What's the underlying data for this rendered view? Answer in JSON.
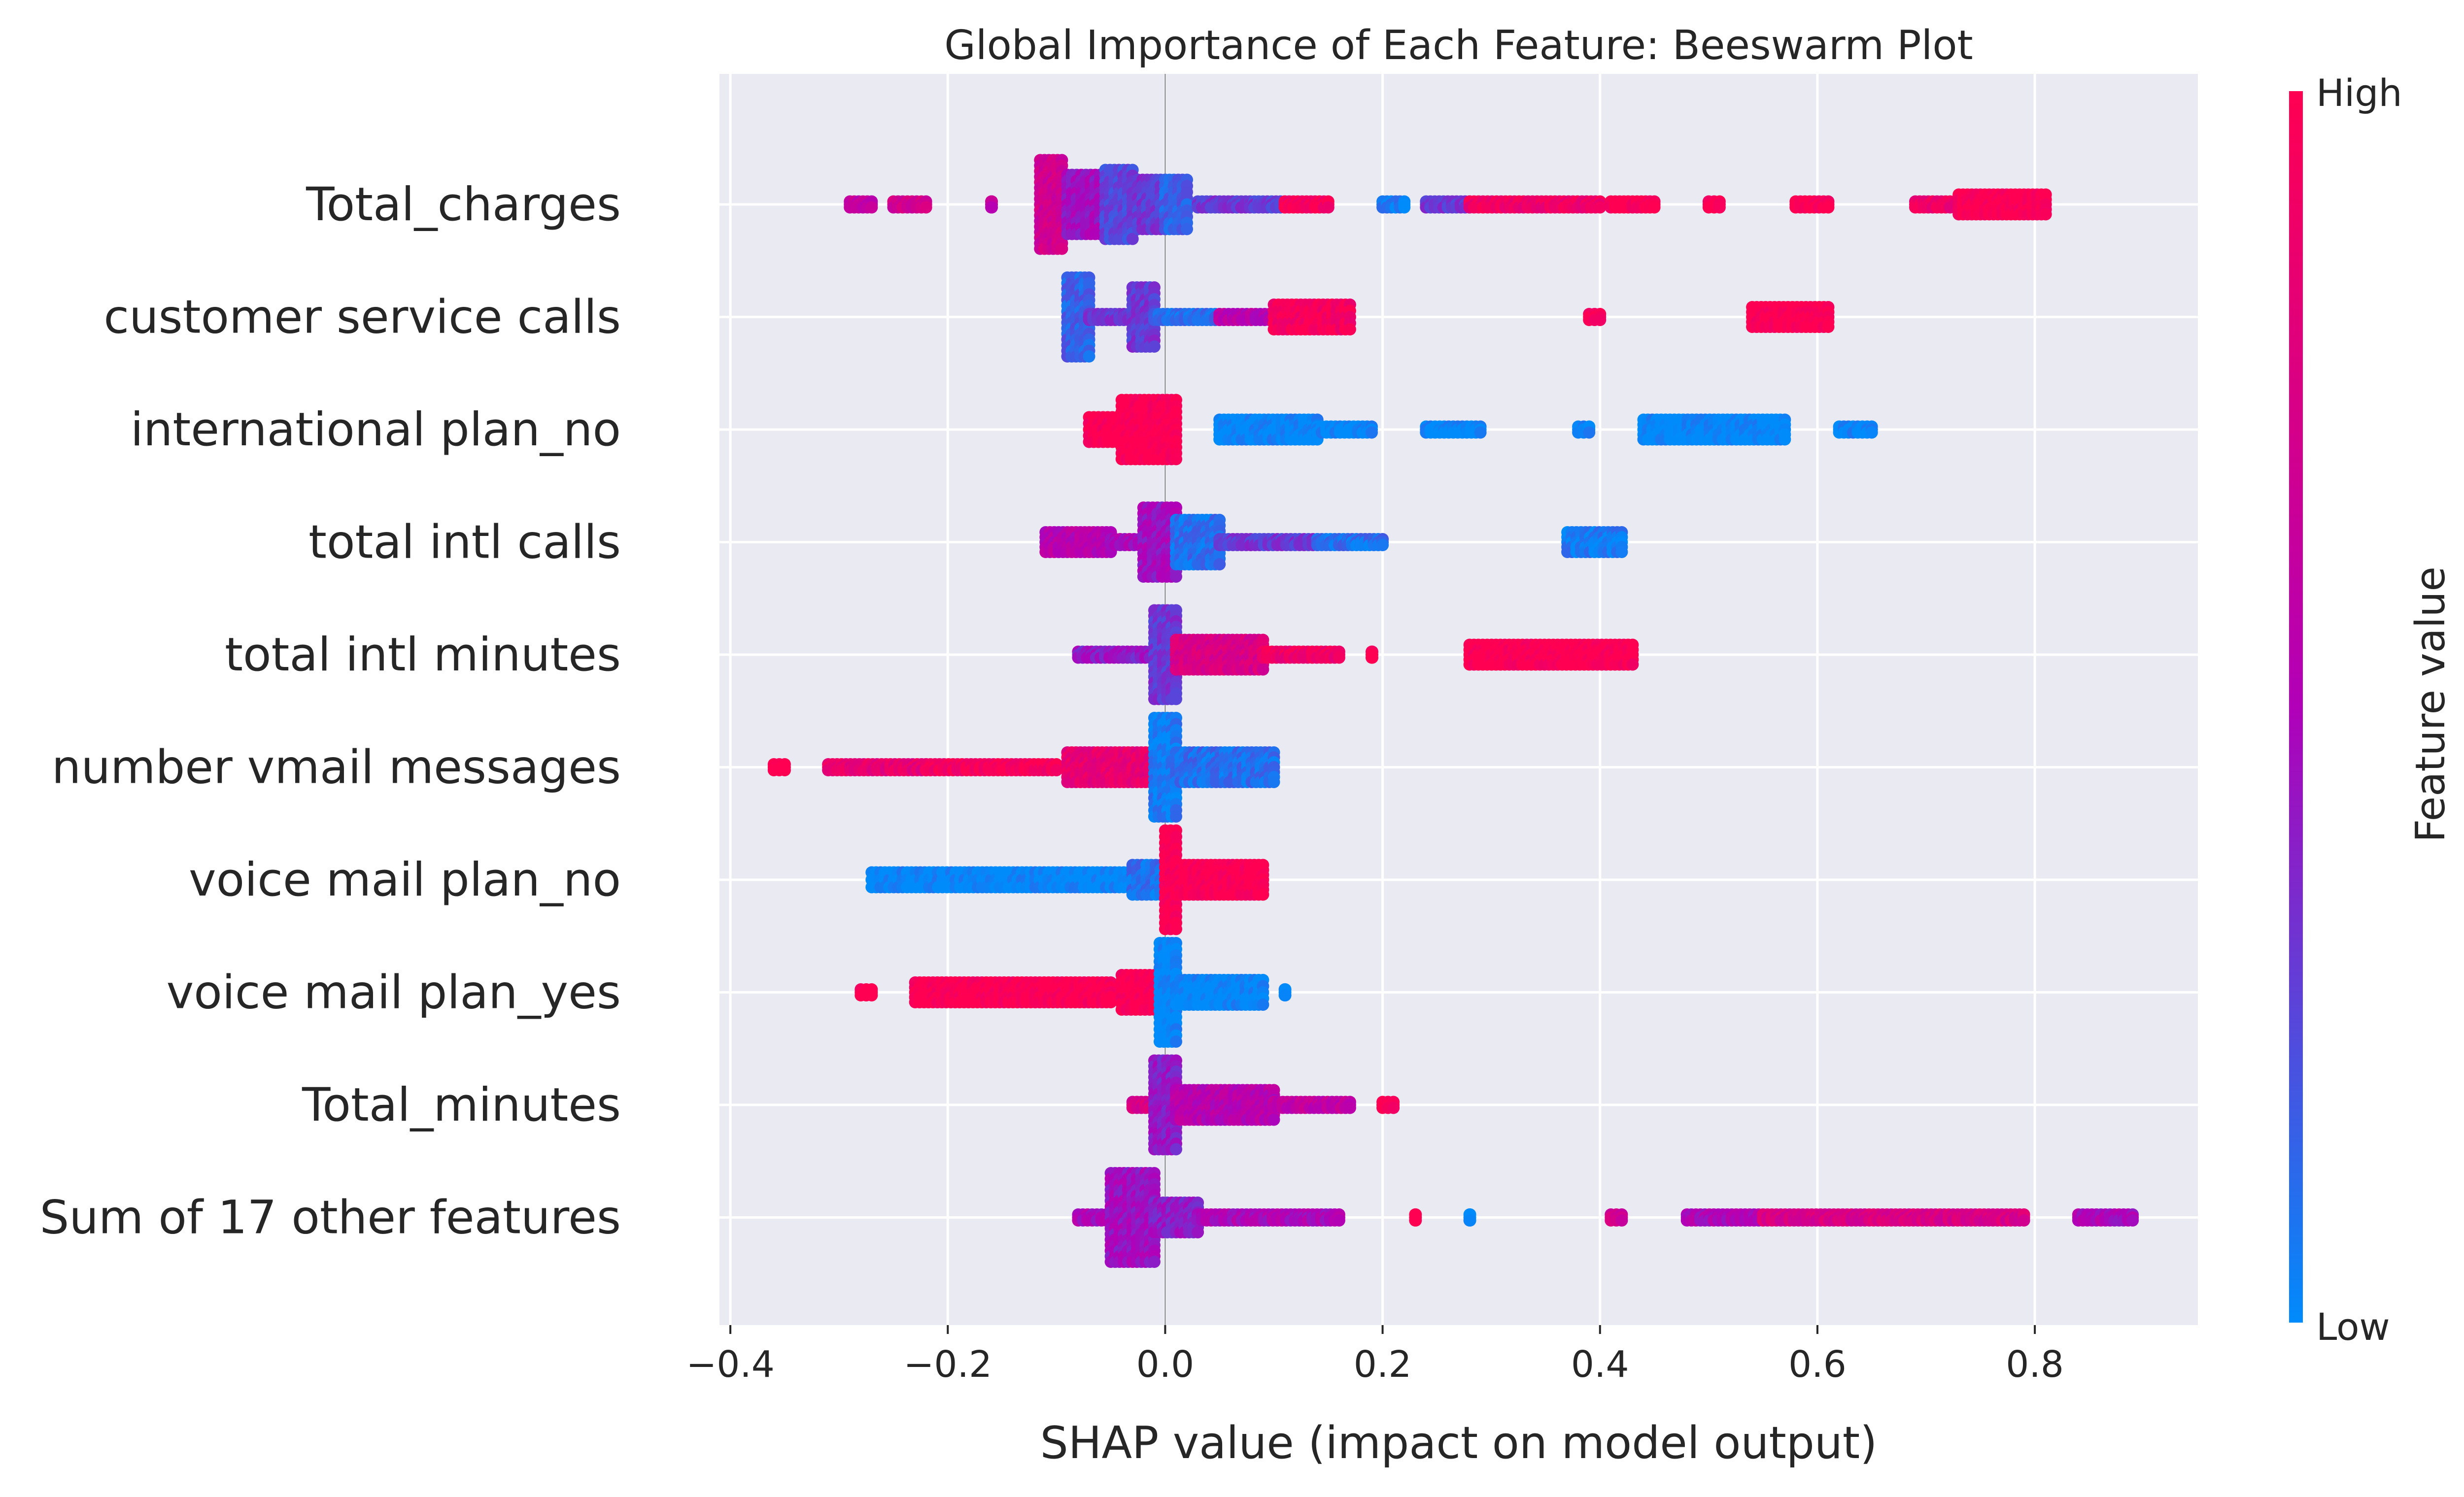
{
  "chart_data": {
    "type": "scatter",
    "subtype": "shap-beeswarm",
    "title": "Global Importance of Each Feature: Beeswarm Plot",
    "xlabel": "SHAP value (impact on model output)",
    "ylabel": "",
    "xlim": [
      -0.41,
      0.95
    ],
    "xticks": [
      -0.4,
      -0.2,
      0.0,
      0.2,
      0.4,
      0.6,
      0.8
    ],
    "xtick_labels": [
      "−0.4",
      "−0.2",
      "0.0",
      "0.2",
      "0.4",
      "0.6",
      "0.8"
    ],
    "grid": true,
    "background": "#eaeaf2",
    "colorbar": {
      "label": "Feature value",
      "high_label": "High",
      "low_label": "Low",
      "low_color": "#008bfb",
      "mid_color": "#b100b8",
      "high_color": "#ff0052"
    },
    "features": [
      {
        "name": "Total_charges",
        "segments": [
          {
            "x": [
              -0.29,
              -0.27
            ],
            "v": 0.6
          },
          {
            "x": [
              -0.25,
              -0.22
            ],
            "v": 0.7
          },
          {
            "x": [
              -0.16,
              -0.16
            ],
            "v": 0.6
          },
          {
            "x": [
              -0.115,
              -0.095
            ],
            "v": 0.7,
            "peak": 0.9
          },
          {
            "x": [
              -0.09,
              -0.06
            ],
            "v": 0.45,
            "peak": 0.6
          },
          {
            "x": [
              -0.055,
              -0.03
            ],
            "v": 0.25,
            "peak": 0.7
          },
          {
            "x": [
              -0.025,
              0.0
            ],
            "v": 0.3,
            "peak": 0.5
          },
          {
            "x": [
              0.0,
              0.02
            ],
            "v": 0.15,
            "peak": 0.5
          },
          {
            "x": [
              0.03,
              0.11
            ],
            "v": 0.3
          },
          {
            "x": [
              0.11,
              0.15
            ],
            "v": 0.95
          },
          {
            "x": [
              0.2,
              0.22
            ],
            "v": 0.05
          },
          {
            "x": [
              0.24,
              0.28
            ],
            "v": 0.3
          },
          {
            "x": [
              0.28,
              0.4
            ],
            "v": 0.9
          },
          {
            "x": [
              0.41,
              0.45
            ],
            "v": 1.0
          },
          {
            "x": [
              0.5,
              0.51
            ],
            "v": 1.0
          },
          {
            "x": [
              0.58,
              0.61
            ],
            "v": 1.0
          },
          {
            "x": [
              0.69,
              0.73
            ],
            "v": 0.9
          },
          {
            "x": [
              0.73,
              0.81
            ],
            "v": 1.0,
            "peak": 0.2
          }
        ]
      },
      {
        "name": "customer service calls",
        "segments": [
          {
            "x": [
              -0.09,
              -0.07
            ],
            "v": 0.15,
            "peak": 0.8
          },
          {
            "x": [
              -0.07,
              -0.03
            ],
            "v": 0.3
          },
          {
            "x": [
              -0.03,
              -0.01
            ],
            "v": 0.3,
            "peak": 0.6
          },
          {
            "x": [
              -0.01,
              0.05
            ],
            "v": 0.1
          },
          {
            "x": [
              0.05,
              0.1
            ],
            "v": 0.55
          },
          {
            "x": [
              0.1,
              0.17
            ],
            "v": 0.95,
            "peak": 0.25
          },
          {
            "x": [
              0.39,
              0.4
            ],
            "v": 1.0
          },
          {
            "x": [
              0.54,
              0.61
            ],
            "v": 1.0,
            "peak": 0.2
          }
        ]
      },
      {
        "name": "international plan_no",
        "segments": [
          {
            "x": [
              -0.07,
              -0.04
            ],
            "v": 1.0,
            "peak": 0.25
          },
          {
            "x": [
              -0.04,
              0.01
            ],
            "v": 1.0,
            "peak": 0.6
          },
          {
            "x": [
              0.05,
              0.14
            ],
            "v": 0.0,
            "peak": 0.2
          },
          {
            "x": [
              0.14,
              0.19
            ],
            "v": 0.0
          },
          {
            "x": [
              0.24,
              0.29
            ],
            "v": 0.0
          },
          {
            "x": [
              0.38,
              0.39
            ],
            "v": 0.0
          },
          {
            "x": [
              0.44,
              0.57
            ],
            "v": 0.0,
            "peak": 0.2
          },
          {
            "x": [
              0.62,
              0.65
            ],
            "v": 0.0
          }
        ]
      },
      {
        "name": "total intl calls",
        "segments": [
          {
            "x": [
              -0.11,
              -0.05
            ],
            "v": 0.55,
            "peak": 0.2
          },
          {
            "x": [
              -0.05,
              -0.02
            ],
            "v": 0.5
          },
          {
            "x": [
              -0.02,
              0.01
            ],
            "v": 0.45,
            "peak": 0.7
          },
          {
            "x": [
              0.01,
              0.05
            ],
            "v": 0.1,
            "peak": 0.45
          },
          {
            "x": [
              0.05,
              0.14
            ],
            "v": 0.3
          },
          {
            "x": [
              0.14,
              0.2
            ],
            "v": 0.1
          },
          {
            "x": [
              0.37,
              0.42
            ],
            "v": 0.05,
            "peak": 0.2
          }
        ]
      },
      {
        "name": "total intl minutes",
        "segments": [
          {
            "x": [
              -0.08,
              -0.01
            ],
            "v": 0.4
          },
          {
            "x": [
              -0.01,
              0.01
            ],
            "v": 0.3,
            "peak": 0.9
          },
          {
            "x": [
              0.01,
              0.09
            ],
            "v": 0.75,
            "peak": 0.3
          },
          {
            "x": [
              0.09,
              0.16
            ],
            "v": 0.9
          },
          {
            "x": [
              0.19,
              0.19
            ],
            "v": 1.0
          },
          {
            "x": [
              0.28,
              0.43
            ],
            "v": 1.0,
            "peak": 0.2
          }
        ]
      },
      {
        "name": "number vmail messages",
        "segments": [
          {
            "x": [
              -0.36,
              -0.35
            ],
            "v": 1.0
          },
          {
            "x": [
              -0.31,
              -0.22
            ],
            "v": 0.85
          },
          {
            "x": [
              -0.22,
              -0.1
            ],
            "v": 0.95
          },
          {
            "x": [
              -0.09,
              -0.01
            ],
            "v": 0.85,
            "peak": 0.3
          },
          {
            "x": [
              -0.01,
              0.01
            ],
            "v": 0.05,
            "peak": 1.0
          },
          {
            "x": [
              0.01,
              0.1
            ],
            "v": 0.1,
            "peak": 0.3
          }
        ]
      },
      {
        "name": "voice mail plan_no",
        "segments": [
          {
            "x": [
              -0.27,
              -0.03
            ],
            "v": 0.0,
            "peak": 0.15
          },
          {
            "x": [
              -0.03,
              0.0
            ],
            "v": 0.1,
            "peak": 0.3
          },
          {
            "x": [
              0.0,
              0.01
            ],
            "v": 1.0,
            "peak": 1.0
          },
          {
            "x": [
              0.01,
              0.09
            ],
            "v": 1.0,
            "peak": 0.3
          }
        ]
      },
      {
        "name": "voice mail plan_yes",
        "segments": [
          {
            "x": [
              -0.28,
              -0.27
            ],
            "v": 1.0
          },
          {
            "x": [
              -0.23,
              -0.05
            ],
            "v": 1.0,
            "peak": 0.2
          },
          {
            "x": [
              -0.04,
              -0.01
            ],
            "v": 1.0,
            "peak": 0.35
          },
          {
            "x": [
              -0.005,
              0.01
            ],
            "v": 0.0,
            "peak": 1.0
          },
          {
            "x": [
              0.01,
              0.09
            ],
            "v": 0.0,
            "peak": 0.25
          },
          {
            "x": [
              0.11,
              0.11
            ],
            "v": 0.0
          }
        ]
      },
      {
        "name": "Total_minutes",
        "segments": [
          {
            "x": [
              -0.03,
              -0.01
            ],
            "v": 0.75
          },
          {
            "x": [
              -0.01,
              0.01
            ],
            "v": 0.4,
            "peak": 0.9
          },
          {
            "x": [
              0.01,
              0.1
            ],
            "v": 0.55,
            "peak": 0.3
          },
          {
            "x": [
              0.1,
              0.17
            ],
            "v": 0.6
          },
          {
            "x": [
              0.2,
              0.21
            ],
            "v": 1.0
          }
        ]
      },
      {
        "name": "Sum of 17 other features",
        "segments": [
          {
            "x": [
              -0.08,
              -0.05
            ],
            "v": 0.5
          },
          {
            "x": [
              -0.05,
              -0.01
            ],
            "v": 0.45,
            "peak": 0.9
          },
          {
            "x": [
              -0.01,
              0.03
            ],
            "v": 0.4,
            "peak": 0.3
          },
          {
            "x": [
              0.03,
              0.16
            ],
            "v": 0.5
          },
          {
            "x": [
              0.23,
              0.23
            ],
            "v": 1.0
          },
          {
            "x": [
              0.28,
              0.28
            ],
            "v": 0.0
          },
          {
            "x": [
              0.41,
              0.42
            ],
            "v": 0.7
          },
          {
            "x": [
              0.48,
              0.55
            ],
            "v": 0.5
          },
          {
            "x": [
              0.55,
              0.79
            ],
            "v": 0.75
          },
          {
            "x": [
              0.84,
              0.89
            ],
            "v": 0.5
          }
        ]
      }
    ]
  }
}
